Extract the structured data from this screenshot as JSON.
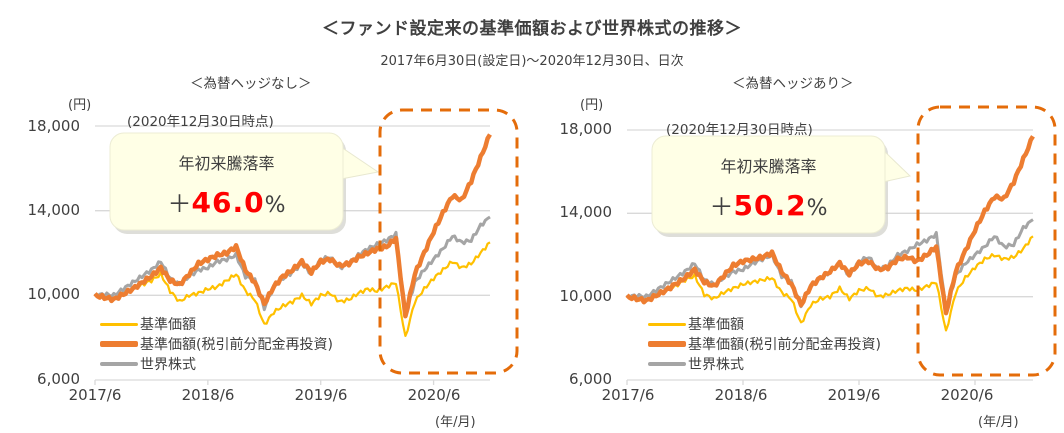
{
  "header": {
    "title": "＜ファンド設定来の基準価額および世界株式の推移＞",
    "subtitle": "2017年6月30日(設定日)～2020年12月30日、日次"
  },
  "colors": {
    "nav": "#FFC000",
    "nav_reinvested": "#ED7D31",
    "world_equity": "#A5A5A5",
    "highlight_box": "#E46C0A",
    "gridline": "#D9D9D9",
    "balloon_fill": "#FFFFE6",
    "value_red": "#FF0000"
  },
  "legend": [
    {
      "key": "nav",
      "label": "基準価額"
    },
    {
      "key": "nav_reinvested",
      "label": "基準価額(税引前分配金再投資)"
    },
    {
      "key": "world_equity",
      "label": "世界株式"
    }
  ],
  "panels": [
    {
      "title": "＜為替ヘッジなし＞",
      "y_unit": "(円)",
      "x_unit": "(年/月)",
      "as_of": "(2020年12月30日時点)",
      "balloon": {
        "label": "年初来騰落率",
        "sign": "＋",
        "value": "46.0",
        "suffix": "%"
      }
    },
    {
      "title": "＜為替ヘッジあり＞",
      "y_unit": "(円)",
      "x_unit": "(年/月)",
      "as_of": "(2020年12月30日時点)",
      "balloon": {
        "label": "年初来騰落率",
        "sign": "＋",
        "value": "50.2",
        "suffix": "%"
      }
    }
  ],
  "chart_data": [
    {
      "type": "line",
      "title": "＜為替ヘッジなし＞",
      "xlabel": "(年/月)",
      "ylabel": "(円)",
      "ylim": [
        6000,
        18000
      ],
      "yticks": [
        "6,000",
        "10,000",
        "14,000",
        "18,000"
      ],
      "ytick_values": [
        6000,
        10000,
        14000,
        18000
      ],
      "xticks": [
        "2017/6",
        "2018/6",
        "2019/6",
        "2020/6"
      ],
      "grid": true,
      "legend_position": "lower-left",
      "annotations": [
        "(2020年12月30日時点)",
        "年初来騰落率 ＋46.0%"
      ],
      "x": [
        "2017/6",
        "2017/7",
        "2017/8",
        "2017/9",
        "2017/10",
        "2017/11",
        "2017/12",
        "2018/1",
        "2018/2",
        "2018/3",
        "2018/4",
        "2018/5",
        "2018/6",
        "2018/7",
        "2018/8",
        "2018/9",
        "2018/10",
        "2018/11",
        "2018/12",
        "2019/1",
        "2019/2",
        "2019/3",
        "2019/4",
        "2019/5",
        "2019/6",
        "2019/7",
        "2019/8",
        "2019/9",
        "2019/10",
        "2019/11",
        "2019/12",
        "2020/1",
        "2020/2",
        "2020/3",
        "2020/4",
        "2020/5",
        "2020/6",
        "2020/7",
        "2020/8",
        "2020/9",
        "2020/10",
        "2020/11",
        "2020/12"
      ],
      "series": [
        {
          "name": "基準価額",
          "values": [
            10000,
            9900,
            9850,
            10100,
            10300,
            10500,
            10700,
            11000,
            10200,
            9700,
            10000,
            10100,
            10300,
            10400,
            10700,
            11000,
            10200,
            9800,
            8600,
            9200,
            9500,
            9700,
            10000,
            9600,
            10000,
            10100,
            9700,
            9800,
            10100,
            10300,
            10200,
            10400,
            10600,
            8000,
            9700,
            10300,
            10800,
            11200,
            11600,
            11300,
            11500,
            12000,
            12500
          ]
        },
        {
          "name": "基準価額(税引前分配金再投資)",
          "values": [
            10000,
            9900,
            9800,
            10050,
            10300,
            10600,
            10900,
            11300,
            10700,
            10500,
            11000,
            11500,
            11700,
            11900,
            12000,
            12300,
            11200,
            10600,
            9600,
            10400,
            10900,
            11200,
            11600,
            11100,
            11600,
            11700,
            11400,
            11500,
            11800,
            12000,
            12200,
            12300,
            12700,
            9000,
            11000,
            12000,
            13000,
            13900,
            14700,
            14500,
            15400,
            16500,
            17600
          ]
        },
        {
          "name": "世界株式",
          "values": [
            10000,
            10050,
            10000,
            10300,
            10600,
            10900,
            11200,
            11600,
            10800,
            10500,
            10900,
            11200,
            11300,
            11600,
            11700,
            11900,
            10900,
            10700,
            9400,
            10400,
            10800,
            11100,
            11500,
            11000,
            11700,
            11800,
            11300,
            11500,
            11900,
            12200,
            12400,
            12600,
            12900,
            9100,
            10600,
            11200,
            11700,
            12200,
            12800,
            12500,
            12600,
            13300,
            13700
          ]
        }
      ]
    },
    {
      "type": "line",
      "title": "＜為替ヘッジあり＞",
      "xlabel": "(年/月)",
      "ylabel": "(円)",
      "ylim": [
        6000,
        18000
      ],
      "yticks": [
        "6,000",
        "10,000",
        "14,000",
        "18,000"
      ],
      "ytick_values": [
        6000,
        10000,
        14000,
        18000
      ],
      "xticks": [
        "2017/6",
        "2018/6",
        "2019/6",
        "2020/6"
      ],
      "grid": true,
      "legend_position": "lower-left",
      "annotations": [
        "(2020年12月30日時点)",
        "年初来騰落率 ＋50.2%"
      ],
      "x": [
        "2017/6",
        "2017/7",
        "2017/8",
        "2017/9",
        "2017/10",
        "2017/11",
        "2017/12",
        "2018/1",
        "2018/2",
        "2018/3",
        "2018/4",
        "2018/5",
        "2018/6",
        "2018/7",
        "2018/8",
        "2018/9",
        "2018/10",
        "2018/11",
        "2018/12",
        "2019/1",
        "2019/2",
        "2019/3",
        "2019/4",
        "2019/5",
        "2019/6",
        "2019/7",
        "2019/8",
        "2019/9",
        "2019/10",
        "2019/11",
        "2019/12",
        "2020/1",
        "2020/2",
        "2020/3",
        "2020/4",
        "2020/5",
        "2020/6",
        "2020/7",
        "2020/8",
        "2020/9",
        "2020/10",
        "2020/11",
        "2020/12"
      ],
      "series": [
        {
          "name": "基準価額",
          "values": [
            10000,
            9900,
            9850,
            10100,
            10300,
            10500,
            10800,
            11000,
            10100,
            9900,
            10200,
            10400,
            10600,
            10700,
            10800,
            10900,
            10200,
            9900,
            8700,
            9600,
            9900,
            10000,
            10400,
            9900,
            10300,
            10400,
            10000,
            10100,
            10300,
            10400,
            10300,
            10500,
            10700,
            8300,
            10200,
            10900,
            11400,
            11800,
            12000,
            11800,
            11900,
            12300,
            12900
          ]
        },
        {
          "name": "基準価額(税引前分配金再投資)",
          "values": [
            10000,
            9900,
            9800,
            10050,
            10300,
            10600,
            10900,
            11300,
            10700,
            10500,
            11000,
            11500,
            11700,
            11800,
            11900,
            12100,
            11200,
            10600,
            9600,
            10500,
            10900,
            11200,
            11600,
            11100,
            11600,
            11700,
            11300,
            11400,
            11800,
            11900,
            11700,
            12000,
            12400,
            9200,
            11200,
            12200,
            13200,
            14100,
            14800,
            14700,
            15500,
            16600,
            17700
          ]
        },
        {
          "name": "世界株式",
          "values": [
            10000,
            10050,
            10000,
            10300,
            10600,
            10900,
            11200,
            11600,
            10800,
            10600,
            10900,
            11200,
            11300,
            11600,
            11800,
            12000,
            11000,
            10700,
            9600,
            10500,
            10900,
            11200,
            11600,
            11000,
            11700,
            11900,
            11300,
            11500,
            12000,
            12200,
            12500,
            12700,
            13000,
            9300,
            11000,
            11600,
            12000,
            12400,
            12900,
            12400,
            12500,
            13300,
            13700
          ]
        }
      ]
    }
  ]
}
